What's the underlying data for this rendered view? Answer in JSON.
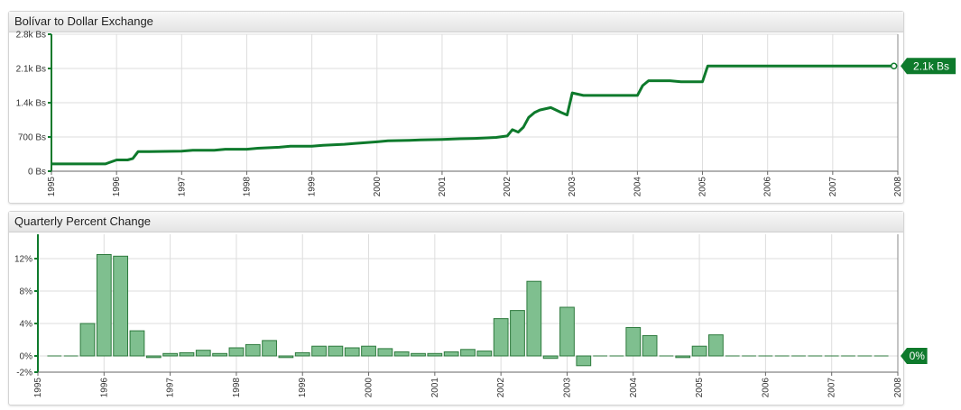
{
  "panels": {
    "top_title": "Bolívar to Dollar Exchange",
    "bottom_title": "Quarterly Percent Change"
  },
  "colors": {
    "line": "#0e7a2c",
    "bar_fill": "#7fbf8f",
    "bar_stroke": "#2d7a3d",
    "badge": "#0e7a2c",
    "grid": "#dddddd"
  },
  "chart_data": [
    {
      "type": "line",
      "title": "Bolívar to Dollar Exchange",
      "xlim": [
        1995,
        2008
      ],
      "ylim": [
        0,
        2800
      ],
      "x_ticks": [
        "1995",
        "1996",
        "1997",
        "1998",
        "1999",
        "2000",
        "2001",
        "2002",
        "2003",
        "2004",
        "2005",
        "2006",
        "2007",
        "2008"
      ],
      "y_ticks": [
        "0 Bs",
        "700 Bs",
        "1.4k Bs",
        "2.1k Bs",
        "2.8k Bs"
      ],
      "last_value_label": "2.1k Bs",
      "grid": true,
      "x": [
        1995.0,
        1995.5,
        1995.83,
        1996.0,
        1996.17,
        1996.25,
        1996.33,
        1996.5,
        1997.0,
        1997.17,
        1997.5,
        1997.67,
        1998.0,
        1998.17,
        1998.5,
        1998.67,
        1999.0,
        1999.17,
        1999.5,
        1999.67,
        2000.0,
        2000.17,
        2000.5,
        2000.67,
        2001.0,
        2001.17,
        2001.5,
        2001.83,
        2002.0,
        2002.08,
        2002.17,
        2002.25,
        2002.33,
        2002.42,
        2002.5,
        2002.67,
        2002.75,
        2002.83,
        2002.92,
        2003.0,
        2003.17,
        2003.5,
        2004.0,
        2004.08,
        2004.17,
        2004.5,
        2004.67,
        2005.0,
        2005.08,
        2005.25,
        2005.5,
        2006.0,
        2007.0,
        2007.94
      ],
      "y": [
        150,
        150,
        150,
        230,
        230,
        260,
        400,
        400,
        410,
        430,
        430,
        450,
        450,
        470,
        490,
        510,
        510,
        530,
        550,
        570,
        600,
        620,
        630,
        640,
        650,
        660,
        670,
        690,
        720,
        850,
        800,
        900,
        1100,
        1200,
        1250,
        1300,
        1250,
        1200,
        1150,
        1600,
        1550,
        1550,
        1550,
        1750,
        1850,
        1850,
        1830,
        1830,
        2150,
        2150,
        2150,
        2150,
        2150,
        2150
      ]
    },
    {
      "type": "bar",
      "title": "Quarterly Percent Change",
      "xlim": [
        1995,
        2008
      ],
      "ylim": [
        -2,
        15
      ],
      "x_ticks": [
        "1995",
        "1996",
        "1997",
        "1998",
        "1999",
        "2000",
        "2001",
        "2002",
        "2003",
        "2004",
        "2005",
        "2006",
        "2007",
        "2008"
      ],
      "y_ticks": [
        "-2%",
        "0%",
        "4%",
        "8%",
        "12%"
      ],
      "last_value_label": "0%",
      "grid": true,
      "x": [
        1995.25,
        1995.5,
        1995.75,
        1996.0,
        1996.25,
        1996.5,
        1996.75,
        1997.0,
        1997.25,
        1997.5,
        1997.75,
        1998.0,
        1998.25,
        1998.5,
        1998.75,
        1999.0,
        1999.25,
        1999.5,
        1999.75,
        2000.0,
        2000.25,
        2000.5,
        2000.75,
        2001.0,
        2001.25,
        2001.5,
        2001.75,
        2002.0,
        2002.25,
        2002.5,
        2002.75,
        2003.0,
        2003.25,
        2003.5,
        2003.75,
        2004.0,
        2004.25,
        2004.5,
        2004.75,
        2005.0,
        2005.25,
        2005.5,
        2005.75,
        2006.0,
        2006.25,
        2006.5,
        2006.75,
        2007.0,
        2007.25,
        2007.5,
        2007.75
      ],
      "values": [
        0,
        0,
        4,
        12.5,
        12.3,
        3.1,
        -0.2,
        0.3,
        0.4,
        0.7,
        0.3,
        1.0,
        1.4,
        1.9,
        -0.2,
        0.4,
        1.2,
        1.2,
        1.0,
        1.2,
        0.9,
        0.5,
        0.3,
        0.3,
        0.5,
        0.8,
        0.6,
        4.6,
        5.6,
        9.2,
        -0.3,
        6.0,
        -1.2,
        0,
        0,
        3.5,
        2.5,
        0,
        -0.2,
        1.2,
        2.6,
        0,
        0,
        0,
        0,
        0,
        0,
        0,
        0,
        0,
        0
      ]
    }
  ]
}
